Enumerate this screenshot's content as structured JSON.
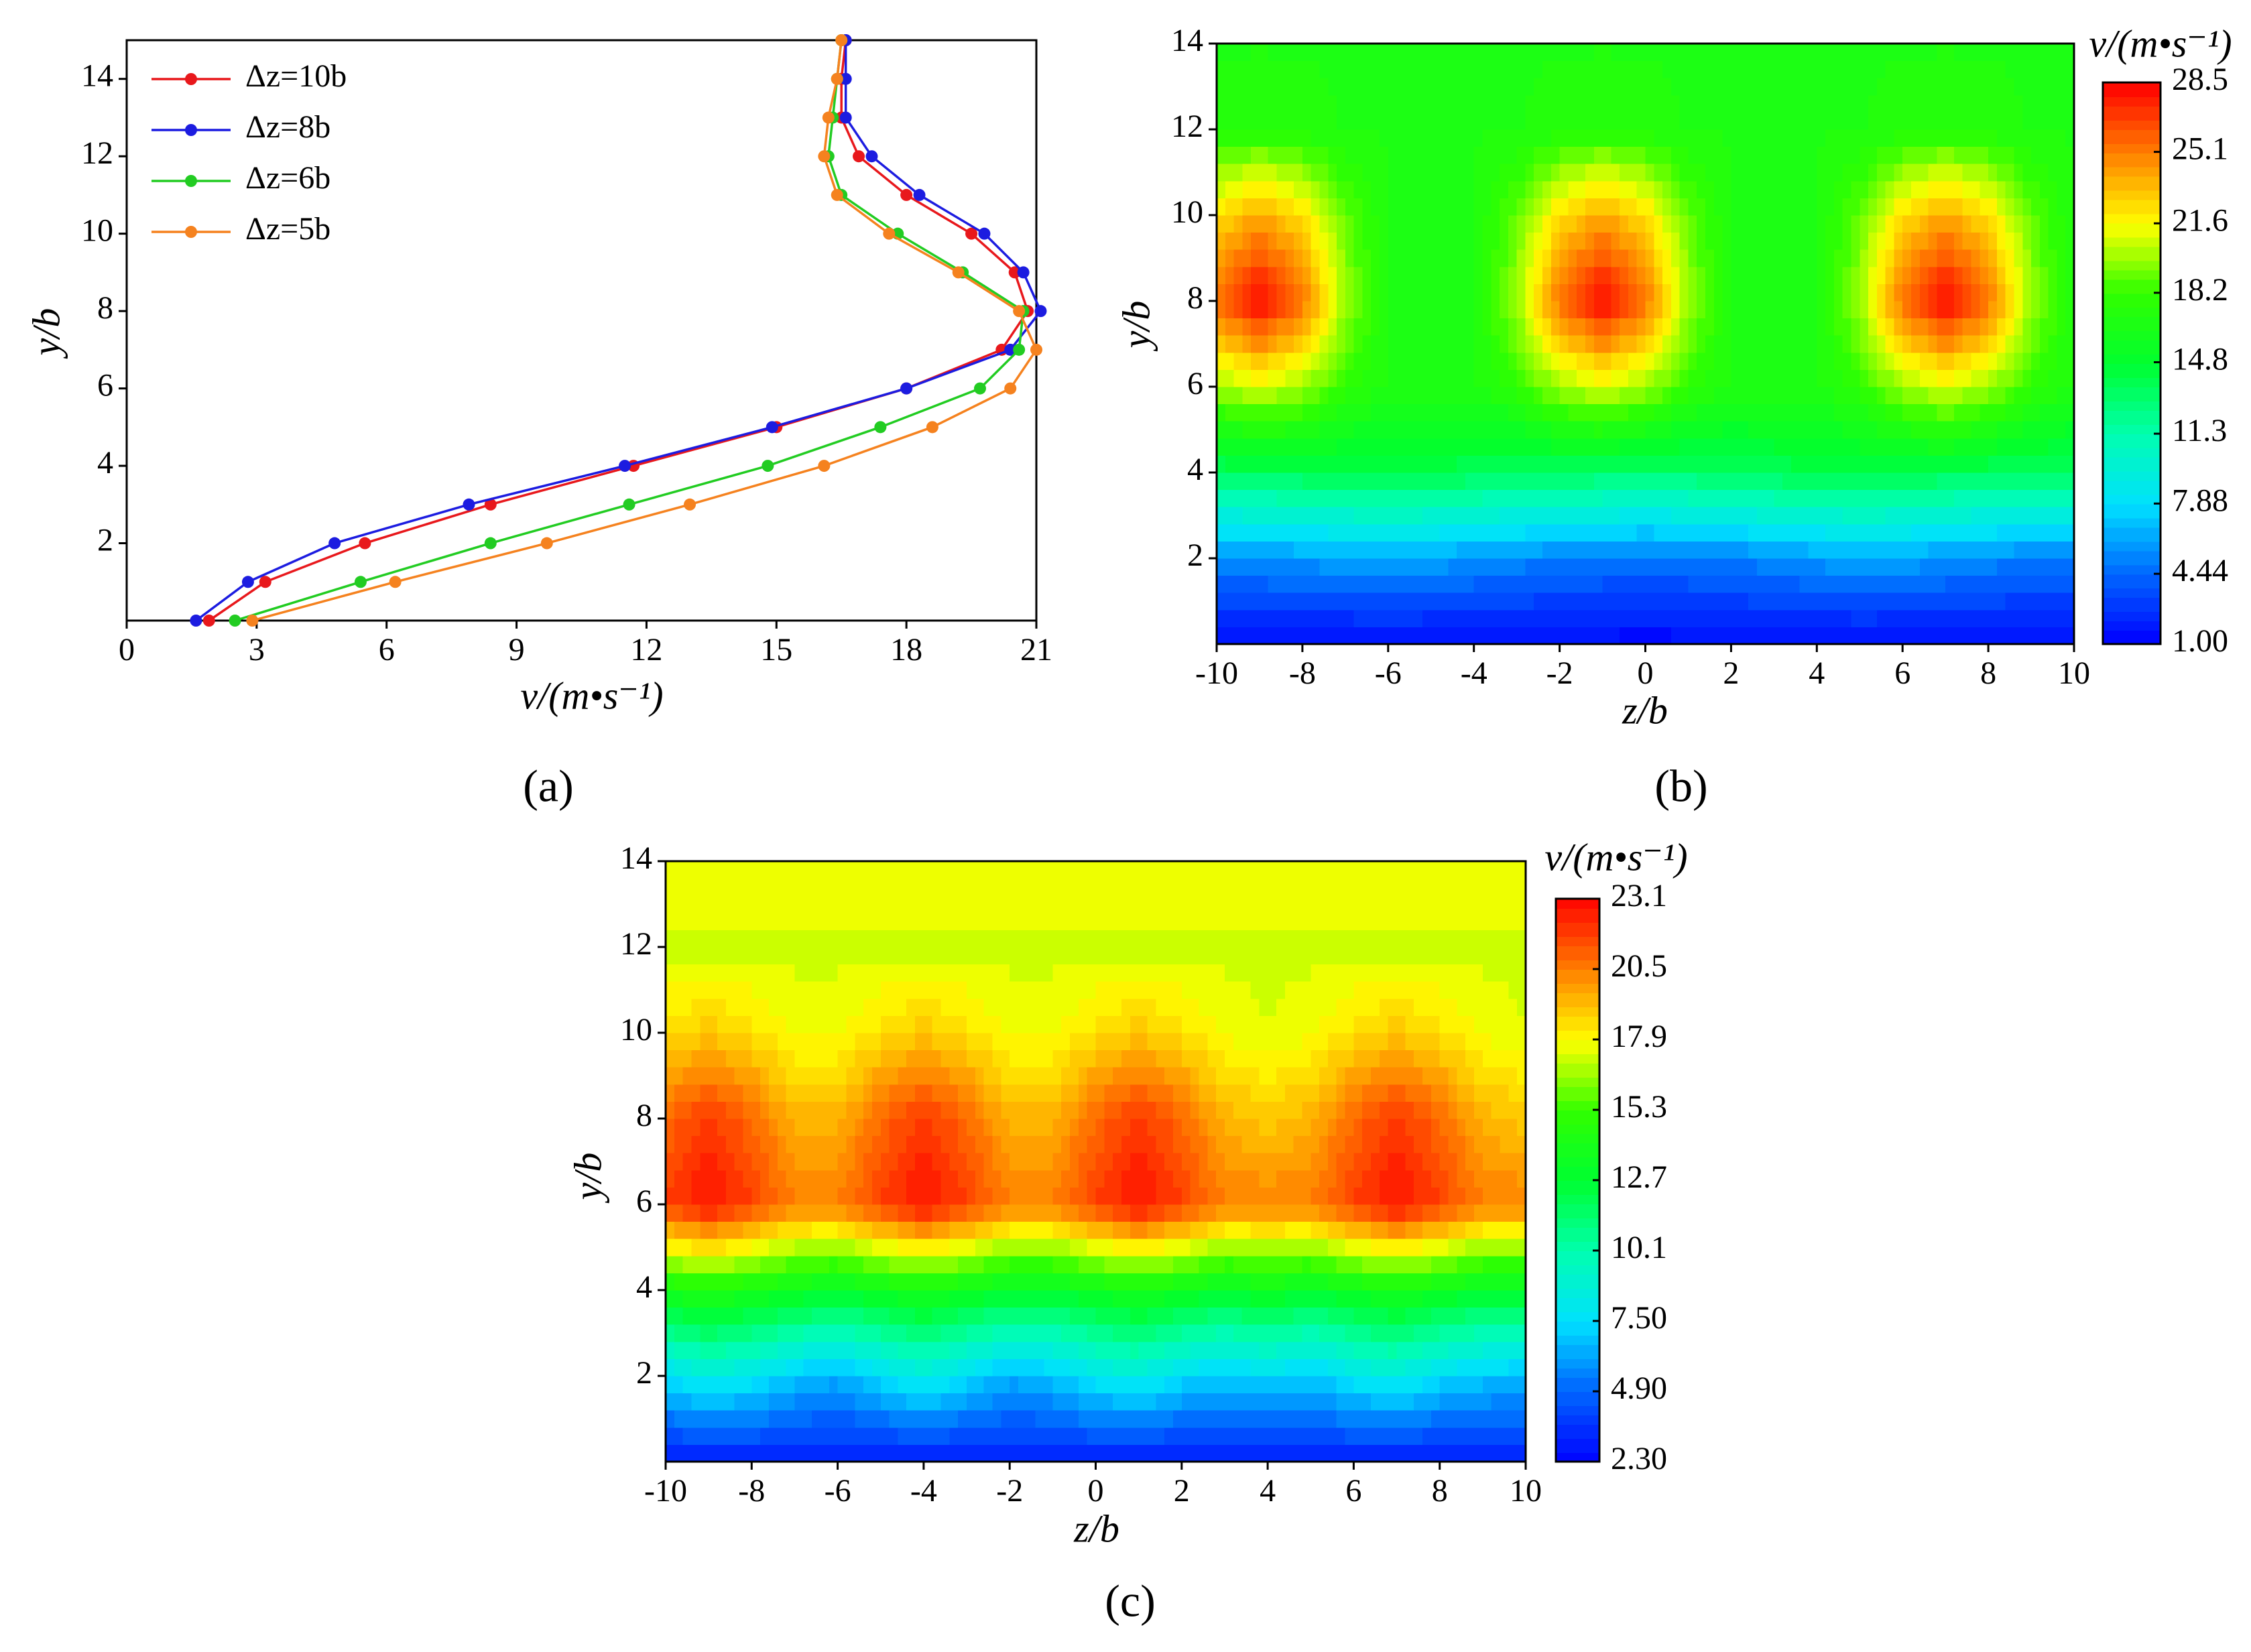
{
  "chart_data": [
    {
      "type": "line",
      "label": "(a)",
      "xlabel": "v/(m•s⁻¹)",
      "ylabel": "y/b",
      "xlim": [
        0,
        21
      ],
      "ylim": [
        0,
        15
      ],
      "xticks": [
        0,
        3,
        6,
        9,
        12,
        15,
        18,
        21
      ],
      "yticks": [
        2,
        4,
        6,
        8,
        10,
        12,
        14
      ],
      "legend": "upper left",
      "series": [
        {
          "name": "Δz=10b",
          "color": "#e8181c",
          "x": [
            1.9,
            3.2,
            5.5,
            8.4,
            11.7,
            15.0,
            18.0,
            20.2,
            20.8,
            20.5,
            19.5,
            18.0,
            16.9,
            16.5,
            16.5,
            16.6
          ],
          "y": [
            0,
            1,
            2,
            3,
            4,
            5,
            6,
            7,
            8,
            9,
            10,
            11,
            12,
            13,
            14,
            15
          ]
        },
        {
          "name": "Δz=8b",
          "color": "#1c1ce0",
          "x": [
            1.6,
            2.8,
            4.8,
            7.9,
            11.5,
            14.9,
            18.0,
            20.4,
            21.1,
            20.7,
            19.8,
            18.3,
            17.2,
            16.6,
            16.6,
            16.6
          ],
          "y": [
            0,
            1,
            2,
            3,
            4,
            5,
            6,
            7,
            8,
            9,
            10,
            11,
            12,
            13,
            14,
            15
          ]
        },
        {
          "name": "Δz=6b",
          "color": "#22cc22",
          "x": [
            2.5,
            5.4,
            8.4,
            11.6,
            14.8,
            17.4,
            19.7,
            20.6,
            20.7,
            19.3,
            17.8,
            16.5,
            16.2,
            16.3,
            16.4,
            16.5
          ],
          "y": [
            0,
            1,
            2,
            3,
            4,
            5,
            6,
            7,
            8,
            9,
            10,
            11,
            12,
            13,
            14,
            15
          ]
        },
        {
          "name": "Δz=5b",
          "color": "#f5821f",
          "x": [
            2.9,
            6.2,
            9.7,
            13.0,
            16.1,
            18.6,
            20.4,
            21.0,
            20.6,
            19.2,
            17.6,
            16.4,
            16.1,
            16.2,
            16.4,
            16.5
          ],
          "y": [
            0,
            1,
            2,
            3,
            4,
            5,
            6,
            7,
            8,
            9,
            10,
            11,
            12,
            13,
            14,
            15
          ]
        }
      ]
    },
    {
      "type": "contour",
      "label": "(b)",
      "xlabel": "z/b",
      "ylabel": "y/b",
      "xlim": [
        -10,
        10
      ],
      "ylim": [
        0,
        14
      ],
      "xticks": [
        -10,
        -8,
        -6,
        -4,
        -2,
        0,
        2,
        4,
        6,
        8,
        10
      ],
      "yticks": [
        2,
        4,
        6,
        8,
        10,
        12,
        14
      ],
      "x": [
        -10,
        -9,
        -8,
        -7,
        -6,
        -5,
        -4,
        -3,
        -2,
        -1,
        0,
        1,
        2,
        3,
        4,
        5,
        6,
        7,
        8,
        9,
        10
      ],
      "y": [
        0,
        2,
        4,
        6,
        8,
        10,
        12,
        14
      ],
      "values": [
        [
          1.2,
          1.2,
          1.2,
          1.2,
          1.2,
          1.2,
          1.2,
          1.2,
          1.2,
          1.2,
          1.2,
          1.2,
          1.2,
          1.2,
          1.2,
          1.2,
          1.2,
          1.2,
          1.2,
          1.2,
          1.2
        ],
        [
          5.5,
          5.8,
          6,
          6.2,
          6.5,
          6.2,
          5.8,
          5.5,
          5.2,
          5,
          4.8,
          5,
          5.2,
          5.6,
          6,
          6.3,
          6.2,
          5.8,
          5.5,
          5.2,
          5
        ],
        [
          13.5,
          13.5,
          13.8,
          14,
          14.2,
          14,
          13.8,
          13.5,
          13.5,
          13.2,
          13,
          13.2,
          13.5,
          13.8,
          14,
          14.2,
          14,
          13.8,
          13.5,
          13.5,
          13.5
        ],
        [
          20,
          21,
          20,
          18,
          17,
          17,
          17,
          18,
          20,
          21,
          20,
          18,
          17,
          17,
          17,
          18,
          20,
          21,
          20,
          18,
          17
        ],
        [
          25.5,
          28.5,
          25.5,
          20,
          17,
          17,
          17,
          20,
          25.5,
          28.5,
          25.5,
          20,
          17,
          17,
          17,
          20,
          25.5,
          28.5,
          25.5,
          20,
          17
        ],
        [
          22.5,
          24,
          22.5,
          19,
          17,
          17,
          17,
          19,
          22.5,
          24,
          22.5,
          19,
          17,
          17,
          17,
          19,
          22.5,
          24,
          22.5,
          19,
          17
        ],
        [
          17.2,
          17.5,
          17.2,
          17,
          17,
          17,
          17,
          17,
          17.2,
          17.5,
          17.2,
          17,
          17,
          17,
          17,
          17,
          17.2,
          17.5,
          17.2,
          17,
          17
        ],
        [
          17,
          17,
          17,
          17,
          17,
          17,
          17,
          17,
          17,
          17,
          17,
          17,
          17,
          17,
          17,
          17,
          17,
          17,
          17,
          17,
          17
        ]
      ],
      "colorbar": {
        "title": "v/(m•s⁻¹)",
        "lim": [
          1,
          28.5
        ],
        "ticks": [
          {
            "value": 1,
            "label": "1.00"
          },
          4.44,
          7.88,
          11.3,
          14.8,
          18.2,
          21.6,
          25.1,
          28.5
        ]
      },
      "colormap": [
        "#0000ff",
        "#0064ff",
        "#00e0ff",
        "#00ffb0",
        "#00ff30",
        "#30ff00",
        "#ffff00",
        "#ff8000",
        "#ff0000"
      ]
    },
    {
      "type": "contour",
      "label": "(c)",
      "xlabel": "z/b",
      "ylabel": "y/b",
      "xlim": [
        -10,
        10
      ],
      "ylim": [
        0,
        14
      ],
      "xticks": [
        -10,
        -8,
        -6,
        -4,
        -2,
        0,
        2,
        4,
        6,
        8,
        10
      ],
      "yticks": [
        2,
        4,
        6,
        8,
        10,
        12,
        14
      ],
      "x": [
        -10,
        -9,
        -8,
        -7,
        -6,
        -5,
        -4,
        -3,
        -2,
        -1,
        0,
        1,
        2,
        3,
        4,
        5,
        6,
        7,
        8,
        9,
        10
      ],
      "y": [
        0,
        2,
        4,
        6,
        8,
        10,
        12,
        14
      ],
      "values": [
        [
          3,
          3,
          3,
          3,
          3,
          3,
          3,
          3,
          3,
          3,
          3,
          3,
          3,
          3,
          3,
          3,
          3,
          3,
          3,
          3,
          3
        ],
        [
          7.5,
          8.5,
          8,
          7,
          6.5,
          7.5,
          8.5,
          7.5,
          6.5,
          7,
          8,
          8.5,
          7.5,
          7,
          7.5,
          7,
          8,
          8.5,
          7.5,
          7,
          6.8
        ],
        [
          14,
          14.5,
          14,
          13.5,
          13,
          13.5,
          14,
          13.5,
          13,
          13,
          13.5,
          14,
          13.5,
          13,
          13.5,
          13,
          13.5,
          14,
          13.5,
          13,
          13
        ],
        [
          21.8,
          22.8,
          21.8,
          20.5,
          20.5,
          21.8,
          22.8,
          21.8,
          20.5,
          20.5,
          21.8,
          22.8,
          21.8,
          20.5,
          20.5,
          20.5,
          21.8,
          22.8,
          21.8,
          20.5,
          20.5
        ],
        [
          21,
          22,
          21,
          19.5,
          19.5,
          21,
          22,
          21,
          19.5,
          19.5,
          21,
          22,
          21,
          19.5,
          19,
          19.5,
          21,
          22,
          21,
          19.5,
          19
        ],
        [
          18.5,
          19,
          18.5,
          17.8,
          17.8,
          18.5,
          19,
          18.5,
          17.8,
          17.8,
          18.5,
          19,
          18.5,
          17.8,
          17.5,
          17.8,
          18.5,
          19,
          18.5,
          17.8,
          17.5
        ],
        [
          17.3,
          17.3,
          17.3,
          17.3,
          17.3,
          17.3,
          17.3,
          17.3,
          17.3,
          17.3,
          17.3,
          17.3,
          17.3,
          17.3,
          17.3,
          17.3,
          17.3,
          17.3,
          17.3,
          17.3,
          17.3
        ],
        [
          17.9,
          17.9,
          17.9,
          17.9,
          17.9,
          17.9,
          17.9,
          17.9,
          17.9,
          17.9,
          17.9,
          17.9,
          17.9,
          17.9,
          17.9,
          17.9,
          17.9,
          17.9,
          17.9,
          17.9,
          17.9
        ]
      ],
      "colorbar": {
        "title": "v/(m•s⁻¹)",
        "lim": [
          2.3,
          23.1
        ],
        "ticks": [
          {
            "value": 2.3,
            "label": "2.30"
          },
          {
            "value": 4.9,
            "label": "4.90"
          },
          {
            "value": 7.5,
            "label": "7.50"
          },
          10.1,
          12.7,
          15.3,
          17.9,
          20.5,
          23.1
        ]
      },
      "colormap": [
        "#0000ff",
        "#0064ff",
        "#00e0ff",
        "#00ffb0",
        "#00ff30",
        "#30ff00",
        "#ffff00",
        "#ff8000",
        "#ff0000"
      ]
    }
  ]
}
